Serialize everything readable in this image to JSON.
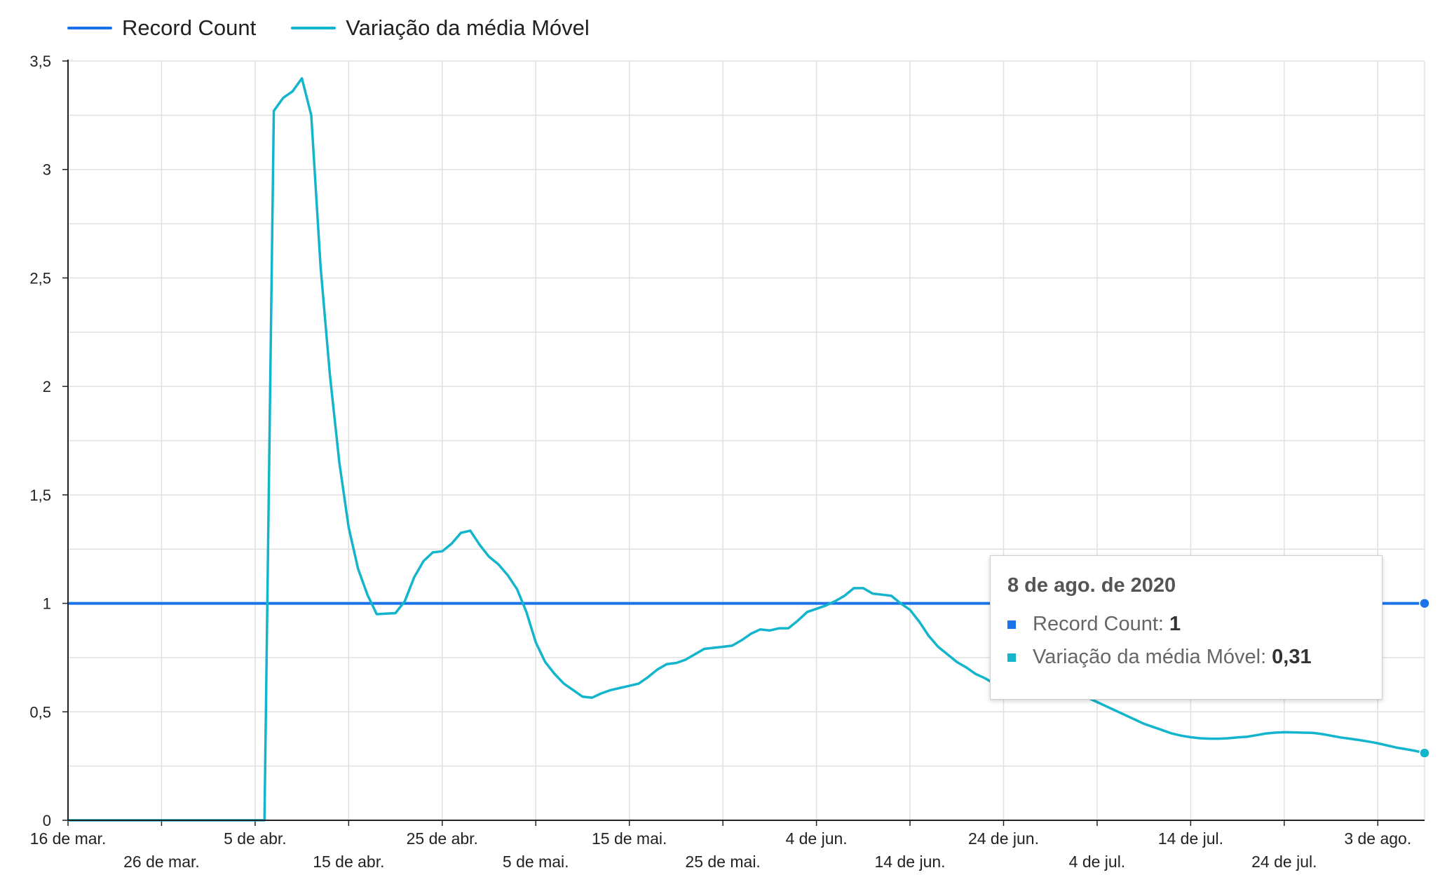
{
  "legend": {
    "series1": "Record Count",
    "series2": "Variação da média Móvel"
  },
  "tooltip": {
    "title": "8 de ago. de 2020",
    "row1_label": "Record Count:",
    "row1_value": "1",
    "row2_label": "Variação da média Móvel:",
    "row2_value": "0,31"
  },
  "colors": {
    "record_count": "#1a73e8",
    "moving_avg": "#12b5cb",
    "grid": "#e0e0e0",
    "axis": "#222222"
  },
  "chart_data": {
    "type": "line",
    "title": "",
    "xlabel": "",
    "ylabel": "",
    "x_range": [
      "2020-03-16",
      "2020-08-08"
    ],
    "ylim": [
      0,
      3.5
    ],
    "y_ticks": [
      "0",
      "0,5",
      "1",
      "1,5",
      "2",
      "2,5",
      "3",
      "3,5"
    ],
    "x_ticks": [
      {
        "date": "2020-03-16",
        "label": "16 de mar."
      },
      {
        "date": "2020-03-26",
        "label": "26 de mar."
      },
      {
        "date": "2020-04-05",
        "label": "5 de abr."
      },
      {
        "date": "2020-04-15",
        "label": "15 de abr."
      },
      {
        "date": "2020-04-25",
        "label": "25 de abr."
      },
      {
        "date": "2020-05-05",
        "label": "5 de mai."
      },
      {
        "date": "2020-05-15",
        "label": "15 de mai."
      },
      {
        "date": "2020-05-25",
        "label": "25 de mai."
      },
      {
        "date": "2020-06-04",
        "label": "4 de jun."
      },
      {
        "date": "2020-06-14",
        "label": "14 de jun."
      },
      {
        "date": "2020-06-24",
        "label": "24 de jun."
      },
      {
        "date": "2020-07-04",
        "label": "4 de jul."
      },
      {
        "date": "2020-07-14",
        "label": "14 de jul."
      },
      {
        "date": "2020-07-24",
        "label": "24 de jul."
      },
      {
        "date": "2020-08-03",
        "label": "3 de ago."
      }
    ],
    "grid": true,
    "legend_position": "top-left",
    "series": [
      {
        "name": "Record Count",
        "color": "#1a73e8",
        "points": [
          [
            "2020-03-16",
            1
          ],
          [
            "2020-08-08",
            1
          ]
        ]
      },
      {
        "name": "Variação da média Móvel",
        "color": "#12b5cb",
        "points": [
          [
            "2020-03-16",
            0
          ],
          [
            "2020-04-06",
            0
          ],
          [
            "2020-04-07",
            3.27
          ],
          [
            "2020-04-08",
            3.33
          ],
          [
            "2020-04-09",
            3.36
          ],
          [
            "2020-04-10",
            3.42
          ],
          [
            "2020-04-11",
            3.25
          ],
          [
            "2020-04-12",
            2.55
          ],
          [
            "2020-04-13",
            2.05
          ],
          [
            "2020-04-14",
            1.65
          ],
          [
            "2020-04-15",
            1.35
          ],
          [
            "2020-04-16",
            1.16
          ],
          [
            "2020-04-17",
            1.04
          ],
          [
            "2020-04-18",
            0.95
          ],
          [
            "2020-04-20",
            0.955
          ],
          [
            "2020-04-21",
            1.01
          ],
          [
            "2020-04-22",
            1.12
          ],
          [
            "2020-04-23",
            1.195
          ],
          [
            "2020-04-24",
            1.235
          ],
          [
            "2020-04-25",
            1.24
          ],
          [
            "2020-04-26",
            1.275
          ],
          [
            "2020-04-27",
            1.325
          ],
          [
            "2020-04-28",
            1.335
          ],
          [
            "2020-04-29",
            1.27
          ],
          [
            "2020-04-30",
            1.215
          ],
          [
            "2020-05-01",
            1.18
          ],
          [
            "2020-05-02",
            1.13
          ],
          [
            "2020-05-03",
            1.065
          ],
          [
            "2020-05-04",
            0.96
          ],
          [
            "2020-05-05",
            0.82
          ],
          [
            "2020-05-06",
            0.73
          ],
          [
            "2020-05-07",
            0.675
          ],
          [
            "2020-05-08",
            0.63
          ],
          [
            "2020-05-09",
            0.6
          ],
          [
            "2020-05-10",
            0.57
          ],
          [
            "2020-05-11",
            0.565
          ],
          [
            "2020-05-12",
            0.585
          ],
          [
            "2020-05-13",
            0.6
          ],
          [
            "2020-05-14",
            0.61
          ],
          [
            "2020-05-15",
            0.62
          ],
          [
            "2020-05-16",
            0.63
          ],
          [
            "2020-05-17",
            0.66
          ],
          [
            "2020-05-18",
            0.695
          ],
          [
            "2020-05-19",
            0.72
          ],
          [
            "2020-05-20",
            0.725
          ],
          [
            "2020-05-21",
            0.74
          ],
          [
            "2020-05-22",
            0.765
          ],
          [
            "2020-05-23",
            0.79
          ],
          [
            "2020-05-24",
            0.795
          ],
          [
            "2020-05-25",
            0.8
          ],
          [
            "2020-05-26",
            0.805
          ],
          [
            "2020-05-27",
            0.83
          ],
          [
            "2020-05-28",
            0.86
          ],
          [
            "2020-05-29",
            0.88
          ],
          [
            "2020-05-30",
            0.875
          ],
          [
            "2020-05-31",
            0.885
          ],
          [
            "2020-06-01",
            0.885
          ],
          [
            "2020-06-02",
            0.92
          ],
          [
            "2020-06-03",
            0.96
          ],
          [
            "2020-06-04",
            0.975
          ],
          [
            "2020-06-05",
            0.99
          ],
          [
            "2020-06-06",
            1.01
          ],
          [
            "2020-06-07",
            1.035
          ],
          [
            "2020-06-08",
            1.07
          ],
          [
            "2020-06-09",
            1.07
          ],
          [
            "2020-06-10",
            1.045
          ],
          [
            "2020-06-11",
            1.04
          ],
          [
            "2020-06-12",
            1.035
          ],
          [
            "2020-06-13",
            1.0
          ],
          [
            "2020-06-14",
            0.97
          ],
          [
            "2020-06-15",
            0.915
          ],
          [
            "2020-06-16",
            0.85
          ],
          [
            "2020-06-17",
            0.8
          ],
          [
            "2020-06-18",
            0.765
          ],
          [
            "2020-06-19",
            0.73
          ],
          [
            "2020-06-20",
            0.705
          ],
          [
            "2020-06-21",
            0.675
          ],
          [
            "2020-06-22",
            0.655
          ],
          [
            "2020-06-23",
            0.63
          ],
          [
            "2020-07-01",
            0.6
          ],
          [
            "2020-07-02",
            0.585
          ],
          [
            "2020-07-03",
            0.565
          ],
          [
            "2020-07-04",
            0.545
          ],
          [
            "2020-07-05",
            0.525
          ],
          [
            "2020-07-06",
            0.505
          ],
          [
            "2020-07-07",
            0.485
          ],
          [
            "2020-07-08",
            0.465
          ],
          [
            "2020-07-09",
            0.445
          ],
          [
            "2020-07-10",
            0.43
          ],
          [
            "2020-07-11",
            0.415
          ],
          [
            "2020-07-12",
            0.4
          ],
          [
            "2020-07-13",
            0.39
          ],
          [
            "2020-07-14",
            0.383
          ],
          [
            "2020-07-15",
            0.378
          ],
          [
            "2020-07-16",
            0.376
          ],
          [
            "2020-07-17",
            0.376
          ],
          [
            "2020-07-18",
            0.378
          ],
          [
            "2020-07-19",
            0.382
          ],
          [
            "2020-07-20",
            0.385
          ],
          [
            "2020-07-21",
            0.392
          ],
          [
            "2020-07-22",
            0.4
          ],
          [
            "2020-07-23",
            0.404
          ],
          [
            "2020-07-24",
            0.406
          ],
          [
            "2020-07-25",
            0.405
          ],
          [
            "2020-07-26",
            0.404
          ],
          [
            "2020-07-27",
            0.403
          ],
          [
            "2020-07-28",
            0.398
          ],
          [
            "2020-07-29",
            0.39
          ],
          [
            "2020-07-30",
            0.382
          ],
          [
            "2020-07-31",
            0.376
          ],
          [
            "2020-08-01",
            0.37
          ],
          [
            "2020-08-02",
            0.363
          ],
          [
            "2020-08-03",
            0.355
          ],
          [
            "2020-08-04",
            0.345
          ],
          [
            "2020-08-05",
            0.335
          ],
          [
            "2020-08-06",
            0.328
          ],
          [
            "2020-08-07",
            0.32
          ],
          [
            "2020-08-08",
            0.31
          ]
        ]
      }
    ]
  }
}
